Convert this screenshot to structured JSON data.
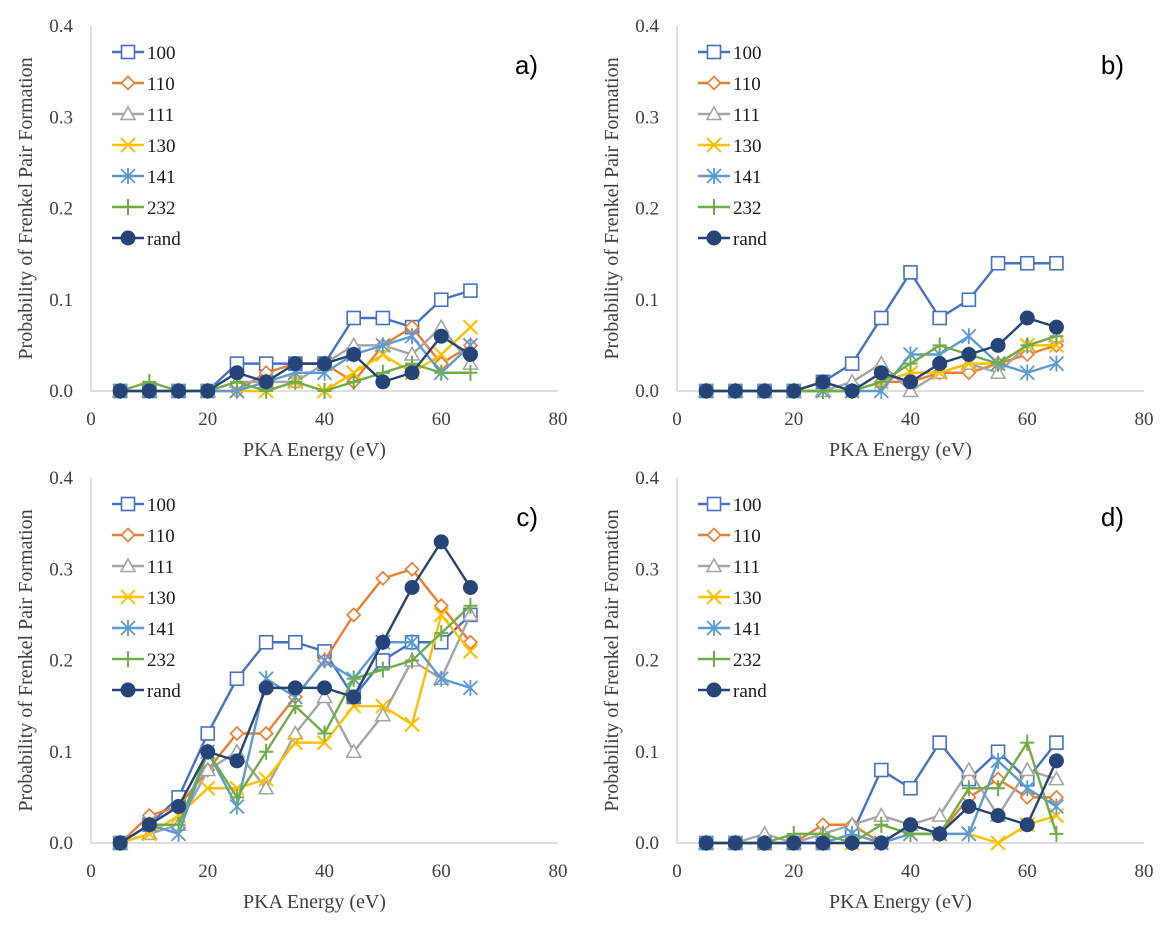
{
  "colors": {
    "100": "#4472C4",
    "110": "#ED7D31",
    "111": "#A5A5A5",
    "130": "#FFC000",
    "141": "#5B9BD5",
    "232": "#70AD47",
    "rand": "#264478"
  },
  "chart_data": [
    {
      "type": "line",
      "panel_label": "a)",
      "xlabel": "PKA Energy (eV)",
      "ylabel": "Probability of Frenkel Pair Formation",
      "xlim": [
        0,
        80
      ],
      "ylim": [
        0,
        0.4
      ],
      "x_ticks": [
        "0",
        "20",
        "40",
        "60",
        "80"
      ],
      "y_ticks": [
        "0.0",
        "0.1",
        "0.2",
        "0.3",
        "0.4"
      ],
      "grid": false,
      "legend_position": "top-left",
      "x": [
        5,
        10,
        15,
        20,
        25,
        30,
        35,
        40,
        45,
        50,
        55,
        60,
        65
      ],
      "series": [
        {
          "name": "100",
          "marker": "open-square",
          "values": [
            0,
            0,
            0,
            0,
            0.03,
            0.03,
            0.03,
            0.03,
            0.08,
            0.08,
            0.07,
            0.1,
            0.11
          ]
        },
        {
          "name": "110",
          "marker": "open-diamond",
          "values": [
            0,
            0,
            0,
            0,
            0,
            0.02,
            0.03,
            0.03,
            0.01,
            0.05,
            0.07,
            0.03,
            0.05
          ]
        },
        {
          "name": "111",
          "marker": "open-triangle",
          "values": [
            0,
            0,
            0,
            0,
            0.01,
            0.01,
            0.01,
            0.03,
            0.05,
            0.05,
            0.04,
            0.07,
            0.03
          ]
        },
        {
          "name": "130",
          "marker": "x",
          "values": [
            0,
            0,
            0,
            0,
            0,
            0,
            0.01,
            0,
            0.02,
            0.04,
            0.02,
            0.04,
            0.07
          ]
        },
        {
          "name": "141",
          "marker": "star",
          "values": [
            0,
            0,
            0,
            0,
            0,
            0.01,
            0.02,
            0.02,
            0.04,
            0.05,
            0.06,
            0.02,
            0.05
          ]
        },
        {
          "name": "232",
          "marker": "plus",
          "values": [
            0,
            0.01,
            0,
            0,
            0.01,
            0,
            0.01,
            0,
            0.01,
            0.02,
            0.03,
            0.02,
            0.02
          ]
        },
        {
          "name": "rand",
          "marker": "filled-circle",
          "values": [
            0,
            0,
            0,
            0,
            0.02,
            0.01,
            0.03,
            0.03,
            0.04,
            0.01,
            0.02,
            0.06,
            0.04
          ]
        }
      ]
    },
    {
      "type": "line",
      "panel_label": "b)",
      "xlabel": "PKA Energy (eV)",
      "ylabel": "Probability of Frenkel Pair Formation",
      "xlim": [
        0,
        80
      ],
      "ylim": [
        0,
        0.4
      ],
      "x_ticks": [
        "0",
        "20",
        "40",
        "60",
        "80"
      ],
      "y_ticks": [
        "0.0",
        "0.1",
        "0.2",
        "0.3",
        "0.4"
      ],
      "grid": false,
      "legend_position": "top-left",
      "x": [
        5,
        10,
        15,
        20,
        25,
        30,
        35,
        40,
        45,
        50,
        55,
        60,
        65
      ],
      "series": [
        {
          "name": "100",
          "marker": "open-square",
          "values": [
            0,
            0,
            0,
            0,
            0.01,
            0.03,
            0.08,
            0.13,
            0.08,
            0.1,
            0.14,
            0.14,
            0.14
          ]
        },
        {
          "name": "110",
          "marker": "open-diamond",
          "values": [
            0,
            0,
            0,
            0,
            0.01,
            0,
            0.01,
            0.01,
            0.02,
            0.02,
            0.03,
            0.04,
            0.05
          ]
        },
        {
          "name": "111",
          "marker": "open-triangle",
          "values": [
            0,
            0,
            0,
            0,
            0,
            0.01,
            0.03,
            0,
            0.02,
            0.03,
            0.02,
            0.05,
            0.06
          ]
        },
        {
          "name": "130",
          "marker": "x",
          "values": [
            0,
            0,
            0,
            0,
            0,
            0,
            0.01,
            0.02,
            0.02,
            0.03,
            0.03,
            0.05,
            0.05
          ]
        },
        {
          "name": "141",
          "marker": "star",
          "values": [
            0,
            0,
            0,
            0,
            0,
            0,
            0,
            0.04,
            0.04,
            0.06,
            0.03,
            0.02,
            0.03
          ]
        },
        {
          "name": "232",
          "marker": "plus",
          "values": [
            0,
            0,
            0,
            0,
            0,
            0,
            0.01,
            0.03,
            0.05,
            0.04,
            0.03,
            0.05,
            0.06
          ]
        },
        {
          "name": "rand",
          "marker": "filled-circle",
          "values": [
            0,
            0,
            0,
            0,
            0.01,
            0,
            0.02,
            0.01,
            0.03,
            0.04,
            0.05,
            0.08,
            0.07
          ]
        }
      ]
    },
    {
      "type": "line",
      "panel_label": "c)",
      "xlabel": "PKA Energy (eV)",
      "ylabel": "Probability of Frenkel Pair Formation",
      "xlim": [
        0,
        80
      ],
      "ylim": [
        0,
        0.4
      ],
      "x_ticks": [
        "0",
        "20",
        "40",
        "60",
        "80"
      ],
      "y_ticks": [
        "0.0",
        "0.1",
        "0.2",
        "0.3",
        "0.4"
      ],
      "grid": false,
      "legend_position": "top-left",
      "x": [
        5,
        10,
        15,
        20,
        25,
        30,
        35,
        40,
        45,
        50,
        55,
        60,
        65
      ],
      "series": [
        {
          "name": "100",
          "marker": "open-square",
          "values": [
            0,
            0.02,
            0.05,
            0.12,
            0.18,
            0.22,
            0.22,
            0.21,
            0.16,
            0.2,
            0.22,
            0.22,
            0.25
          ]
        },
        {
          "name": "110",
          "marker": "open-diamond",
          "values": [
            0,
            0.03,
            0.04,
            0.08,
            0.12,
            0.12,
            0.16,
            0.2,
            0.25,
            0.29,
            0.3,
            0.26,
            0.22
          ]
        },
        {
          "name": "111",
          "marker": "open-triangle",
          "values": [
            0,
            0.01,
            0.02,
            0.08,
            0.1,
            0.06,
            0.12,
            0.16,
            0.1,
            0.14,
            0.2,
            0.18,
            0.25
          ]
        },
        {
          "name": "130",
          "marker": "x",
          "values": [
            0,
            0.01,
            0.03,
            0.06,
            0.06,
            0.07,
            0.11,
            0.11,
            0.15,
            0.15,
            0.13,
            0.25,
            0.21
          ]
        },
        {
          "name": "141",
          "marker": "star",
          "values": [
            0,
            0.02,
            0.01,
            0.1,
            0.04,
            0.18,
            0.16,
            0.2,
            0.18,
            0.22,
            0.22,
            0.18,
            0.17
          ]
        },
        {
          "name": "232",
          "marker": "plus",
          "values": [
            0,
            0.02,
            0.02,
            0.1,
            0.05,
            0.1,
            0.15,
            0.12,
            0.18,
            0.19,
            0.2,
            0.23,
            0.26
          ]
        },
        {
          "name": "rand",
          "marker": "filled-circle",
          "values": [
            0,
            0.02,
            0.04,
            0.1,
            0.09,
            0.17,
            0.17,
            0.17,
            0.16,
            0.22,
            0.28,
            0.33,
            0.28
          ]
        }
      ]
    },
    {
      "type": "line",
      "panel_label": "d)",
      "xlabel": "PKA Energy (eV)",
      "ylabel": "Probability of Frenkel Pair Formation",
      "xlim": [
        0,
        80
      ],
      "ylim": [
        0,
        0.4
      ],
      "x_ticks": [
        "0",
        "20",
        "40",
        "60",
        "80"
      ],
      "y_ticks": [
        "0.0",
        "0.1",
        "0.2",
        "0.3",
        "0.4"
      ],
      "grid": false,
      "legend_position": "top-left",
      "x": [
        5,
        10,
        15,
        20,
        25,
        30,
        35,
        40,
        45,
        50,
        55,
        60,
        65
      ],
      "series": [
        {
          "name": "100",
          "marker": "open-square",
          "values": [
            0,
            0,
            0,
            0,
            0,
            0.01,
            0.08,
            0.06,
            0.11,
            0.07,
            0.1,
            0.07,
            0.11
          ]
        },
        {
          "name": "110",
          "marker": "open-diamond",
          "values": [
            0,
            0,
            0,
            0,
            0.02,
            0.02,
            0,
            0.02,
            0.01,
            0.05,
            0.07,
            0.05,
            0.05
          ]
        },
        {
          "name": "111",
          "marker": "open-triangle",
          "values": [
            0,
            0,
            0.01,
            0,
            0.01,
            0.02,
            0.03,
            0.02,
            0.03,
            0.08,
            0.03,
            0.08,
            0.07
          ]
        },
        {
          "name": "130",
          "marker": "x",
          "values": [
            0,
            0,
            0,
            0,
            0,
            0,
            0,
            0.01,
            0.01,
            0.01,
            0,
            0.02,
            0.03
          ]
        },
        {
          "name": "141",
          "marker": "star",
          "values": [
            0,
            0,
            0,
            0,
            0,
            0.01,
            0,
            0.01,
            0.01,
            0.01,
            0.09,
            0.06,
            0.04
          ]
        },
        {
          "name": "232",
          "marker": "plus",
          "values": [
            0,
            0,
            0,
            0.01,
            0.01,
            0,
            0.02,
            0.01,
            0.01,
            0.06,
            0.06,
            0.11,
            0.01
          ]
        },
        {
          "name": "rand",
          "marker": "filled-circle",
          "values": [
            0,
            0,
            0,
            0,
            0,
            0,
            0,
            0.02,
            0.01,
            0.04,
            0.03,
            0.02,
            0.09
          ]
        }
      ]
    }
  ]
}
